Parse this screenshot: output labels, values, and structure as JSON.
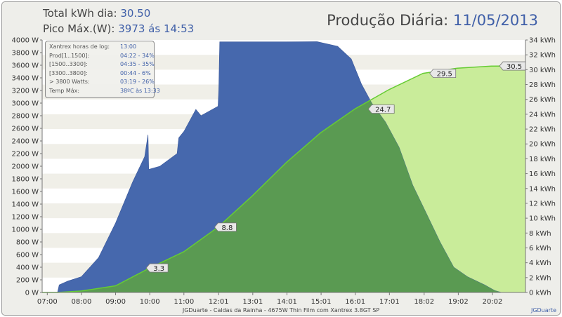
{
  "header": {
    "total_label": "Total kWh dia:",
    "total_value": "30.50",
    "peak_label": "Pico Máx.(W):",
    "peak_value": "3973 ás 14:53",
    "title_label": "Produção Diária:",
    "title_date": "11/05/2013"
  },
  "info": {
    "rows": [
      {
        "label": "Xantrex horas de log:",
        "value": "13:00"
      },
      {
        "label": "Prod[1..1500]:",
        "value": "04:22 - 34%"
      },
      {
        "label": "[1500..3300]:",
        "value": "04:35 - 35%"
      },
      {
        "label": "[3300..3800]:",
        "value": "00:44 - 6%"
      },
      {
        "label": "> 3800 Watts:",
        "value": "03:19 - 26%"
      },
      {
        "label": "Temp Máx:",
        "value": "38ºC às 13:33"
      }
    ]
  },
  "footer": {
    "caption": "JGDuarte  -  Caldas da Rainha  -  4675W Thin Film com Xantrex 3.8GT SP",
    "credit": "JGDuarte"
  },
  "chart_data": {
    "type": "area",
    "x_ticks": [
      "07:00",
      "08:00",
      "09:00",
      "10:00",
      "11:00",
      "12:01",
      "13:01",
      "14:01",
      "15:01",
      "16:01",
      "17:01",
      "18:02",
      "19:02",
      "20:02"
    ],
    "y_left": {
      "min": 0,
      "max": 4000,
      "step": 200,
      "unit": "W",
      "tick_labels": [
        "0 W",
        "200 W",
        "400 W",
        "600 W",
        "800 W",
        "1000 W",
        "1200 W",
        "1400 W",
        "1600 W",
        "1800 W",
        "2000 W",
        "2200 W",
        "2400 W",
        "2600 W",
        "2800 W",
        "3000 W",
        "3200 W",
        "3400 W",
        "3600 W",
        "3800 W",
        "4000 W"
      ]
    },
    "y_right": {
      "min": 0,
      "max": 34,
      "step": 2,
      "unit": "kWh",
      "tick_labels": [
        "0 kWh",
        "2 kWh",
        "4 kWh",
        "6 kWh",
        "8 kWh",
        "10 kWh",
        "12 kWh",
        "14 kWh",
        "16 kWh",
        "18 kWh",
        "20 kWh",
        "22 kWh",
        "24 kWh",
        "26 kWh",
        "28 kWh",
        "30 kWh",
        "32 kWh",
        "34 kWh"
      ]
    },
    "series": [
      {
        "axis": "left",
        "color": "#4668ad",
        "power_profile": [
          [
            6.85,
            0
          ],
          [
            7.3,
            0
          ],
          [
            7.35,
            120
          ],
          [
            7.6,
            180
          ],
          [
            8.0,
            250
          ],
          [
            8.5,
            550
          ],
          [
            9.0,
            1100
          ],
          [
            9.5,
            1750
          ],
          [
            9.85,
            2150
          ],
          [
            9.95,
            2500
          ],
          [
            9.97,
            1950
          ],
          [
            10.3,
            2000
          ],
          [
            10.8,
            2200
          ],
          [
            10.85,
            2450
          ],
          [
            11.0,
            2550
          ],
          [
            11.35,
            2900
          ],
          [
            11.5,
            2800
          ],
          [
            12.0,
            2950
          ],
          [
            12.02,
            3200
          ],
          [
            12.05,
            3970
          ],
          [
            12.8,
            3970
          ],
          [
            14.0,
            3970
          ],
          [
            14.9,
            3973
          ],
          [
            15.5,
            3900
          ],
          [
            15.9,
            3700
          ],
          [
            16.2,
            3300
          ],
          [
            16.5,
            3000
          ],
          [
            16.9,
            2700
          ],
          [
            17.3,
            2300
          ],
          [
            17.7,
            1700
          ],
          [
            18.1,
            1250
          ],
          [
            18.5,
            800
          ],
          [
            18.9,
            400
          ],
          [
            19.3,
            250
          ],
          [
            19.8,
            120
          ],
          [
            20.1,
            30
          ],
          [
            20.3,
            0
          ],
          [
            21.0,
            0
          ]
        ]
      },
      {
        "axis": "right",
        "color": "#3a8a3a",
        "energy_profile": [
          [
            6.85,
            0
          ],
          [
            7.3,
            0
          ],
          [
            8.0,
            0.2
          ],
          [
            9.0,
            0.9
          ],
          [
            10.0,
            3.3
          ],
          [
            11.0,
            5.5
          ],
          [
            12.0,
            8.8
          ],
          [
            13.0,
            13.0
          ],
          [
            14.0,
            17.5
          ],
          [
            15.0,
            21.5
          ],
          [
            16.0,
            24.7
          ],
          [
            17.0,
            27.3
          ],
          [
            18.0,
            29.5
          ],
          [
            19.0,
            30.2
          ],
          [
            20.0,
            30.48
          ],
          [
            21.0,
            30.5
          ]
        ]
      }
    ],
    "annotations": [
      {
        "x": 10.0,
        "y": 3.3,
        "text": "3.3"
      },
      {
        "x": 12.0,
        "y": 8.8,
        "text": "8.8"
      },
      {
        "x": 16.5,
        "y": 24.7,
        "text": "24.7"
      },
      {
        "x": 18.3,
        "y": 29.5,
        "text": "29.5"
      },
      {
        "x": 21.0,
        "y": 30.5,
        "text": "30.5"
      }
    ]
  }
}
